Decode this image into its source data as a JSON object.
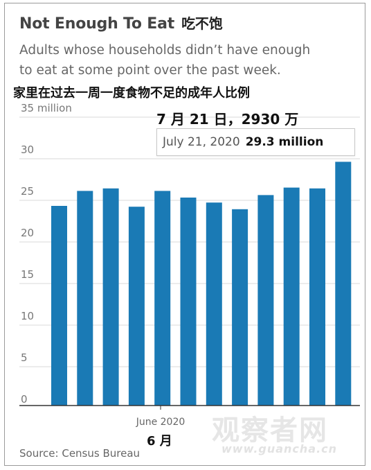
{
  "title": "Not Enough To Eat",
  "title_cn": "吃不饱",
  "subtitle_line1": "Adults whose households didn’t have enough",
  "subtitle_line2": "to eat at some point over the past week.",
  "subtitle_cn": "家里在过去一周一度食物不足的成年人比例",
  "callout_cn": "7 月 21 日，2930 万",
  "tooltip": {
    "date": "July 21, 2020",
    "value": "29.3 million"
  },
  "x_axis_label": "June 2020",
  "x_axis_label_cn": "6 月",
  "source": "Source: Census Bureau",
  "watermark": {
    "text": "观察者网",
    "url": "www.guancha.cn"
  },
  "colors": {
    "bar": "#1a7ab5",
    "grid": "#d9d9d9",
    "axis": "#333333"
  },
  "chart_data": {
    "type": "bar",
    "title": "Not Enough To Eat",
    "subtitle": "Adults whose households didn’t have enough to eat at some point over the past week.",
    "unit": "million",
    "values": [
      24.0,
      25.8,
      26.1,
      23.9,
      25.8,
      25.0,
      24.4,
      23.6,
      25.3,
      26.2,
      26.1,
      29.3
    ],
    "ylim": [
      0,
      35
    ],
    "yticks": [
      {
        "value": 0,
        "label": "0"
      },
      {
        "value": 5,
        "label": "5"
      },
      {
        "value": 10,
        "label": "10"
      },
      {
        "value": 15,
        "label": "15"
      },
      {
        "value": 20,
        "label": "20"
      },
      {
        "value": 25,
        "label": "25"
      },
      {
        "value": 30,
        "label": "30"
      },
      {
        "value": 35,
        "label": "35 million"
      }
    ],
    "grid": true,
    "highlight": {
      "index": 11,
      "label": "July 21, 2020",
      "value": 29.3
    }
  }
}
